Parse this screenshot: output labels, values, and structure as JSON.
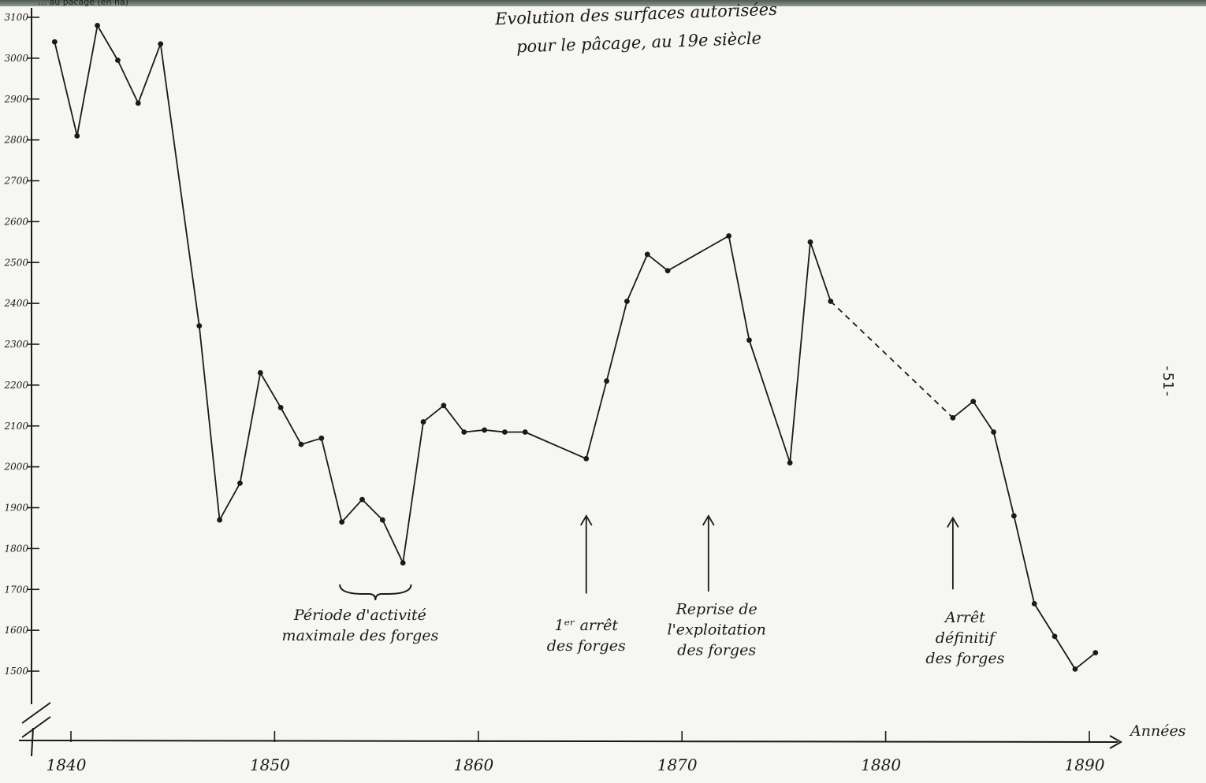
{
  "chart_data": {
    "type": "line",
    "title_line1": "Evolution des surfaces autorisées",
    "title_line2": "pour le pâcage, au 19e siècle",
    "ylabel": "… au pacage (en ha)",
    "xlabel": "Années",
    "xlim": [
      1838,
      1891.5
    ],
    "ylim": [
      1320,
      3110
    ],
    "x_ticks": [
      1840,
      1850,
      1860,
      1870,
      1880,
      1890
    ],
    "x_tick_labels": [
      "1840",
      "1850",
      "1860",
      "1870",
      "1880",
      "1890"
    ],
    "y_ticks": [
      3100,
      3000,
      2900,
      2800,
      2700,
      2600,
      2500,
      2400,
      2300,
      2200,
      2100,
      2000,
      1900,
      1800,
      1700,
      1600,
      1500
    ],
    "y_tick_labels": [
      "3100",
      "3000",
      "2900",
      "2800",
      "2700",
      "2600",
      "2500",
      "2400",
      "2300",
      "2200",
      "2100",
      "2000",
      "1900",
      "1800",
      "1700",
      "1600",
      "1500"
    ],
    "grid": false,
    "legend": "none",
    "series": [
      {
        "points": [
          [
            1839.2,
            3040
          ],
          [
            1840.3,
            2810
          ],
          [
            1841.3,
            3080
          ],
          [
            1842.3,
            2995
          ],
          [
            1843.3,
            2890
          ],
          [
            1844.4,
            3035
          ],
          [
            1846.3,
            2345
          ],
          [
            1847.3,
            1870
          ],
          [
            1848.3,
            1960
          ],
          [
            1849.3,
            2230
          ],
          [
            1850.3,
            2145
          ],
          [
            1851.3,
            2055
          ],
          [
            1852.3,
            2070
          ],
          [
            1853.3,
            1865
          ],
          [
            1854.3,
            1920
          ],
          [
            1855.3,
            1870
          ],
          [
            1856.3,
            1765
          ],
          [
            1857.3,
            2110
          ],
          [
            1858.3,
            2150
          ],
          [
            1859.3,
            2085
          ],
          [
            1860.3,
            2090
          ],
          [
            1861.3,
            2085
          ],
          [
            1862.3,
            2085
          ],
          [
            1865.3,
            2020
          ],
          [
            1866.3,
            2210
          ],
          [
            1867.3,
            2405
          ],
          [
            1868.3,
            2520
          ],
          [
            1869.3,
            2480
          ],
          [
            1872.3,
            2565
          ],
          [
            1873.3,
            2310
          ],
          [
            1875.3,
            2010
          ],
          [
            1876.3,
            2550
          ],
          [
            1877.3,
            2405
          ]
        ]
      },
      {
        "dashed": true,
        "points": [
          [
            1877.3,
            2405
          ],
          [
            1883.3,
            2120
          ]
        ]
      },
      {
        "points": [
          [
            1883.3,
            2120
          ],
          [
            1884.3,
            2160
          ],
          [
            1885.3,
            2085
          ],
          [
            1886.3,
            1880
          ],
          [
            1887.3,
            1665
          ],
          [
            1888.3,
            1585
          ],
          [
            1889.3,
            1505
          ],
          [
            1890.3,
            1545
          ]
        ]
      }
    ],
    "annotations": [
      {
        "id": "periode",
        "lines": [
          "Période d'activité",
          "maximale des forges"
        ],
        "x": 1854.2,
        "y": 1625,
        "brace": [
          1853.2,
          1856.7
        ]
      },
      {
        "id": "arret1",
        "lines": [
          "1ᵉʳ arrêt",
          "des forges"
        ],
        "x": 1865.3,
        "y": 1600,
        "arrow_x": 1865.3,
        "arrow_from": 1690,
        "arrow_to": 1880
      },
      {
        "id": "reprise",
        "lines": [
          "Reprise de",
          "l'exploitation",
          "des forges"
        ],
        "x": 1871.7,
        "y": 1640,
        "arrow_x": 1871.3,
        "arrow_from": 1695,
        "arrow_to": 1880
      },
      {
        "id": "arret-def",
        "lines": [
          "Arrêt",
          "définitif",
          "des forges"
        ],
        "x": 1883.9,
        "y": 1620,
        "arrow_x": 1883.3,
        "arrow_from": 1700,
        "arrow_to": 1875
      }
    ],
    "colors": {
      "line": "#1a1a1a",
      "paper": "#f6f6f2",
      "ink": "#1a1a1a"
    }
  },
  "page_number": "-51-"
}
